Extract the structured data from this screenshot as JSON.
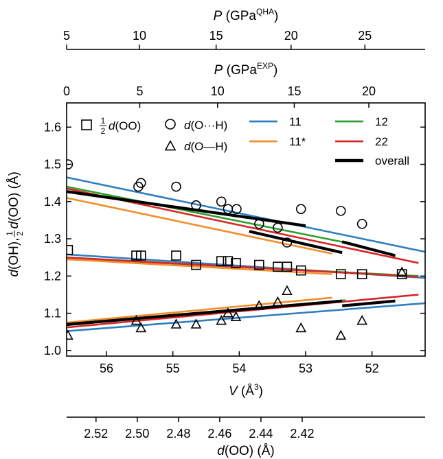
{
  "chart_data": {
    "type": "scatter",
    "xlabel": "V (Å3)",
    "xlabel_parts": {
      "symbol": "V",
      "unit": "(Å",
      "sup": "3",
      "close": ")"
    },
    "ylabel": "d(OH), 1/2 d(OO) (Å)",
    "ylabel_parts": {
      "a": "d",
      "b": "(OH), ",
      "num": "1",
      "den": "2",
      "c": "d",
      "d": "(OO) (Å)"
    },
    "xlim": [
      56.6,
      51.2
    ],
    "ylim": [
      0.985,
      1.665
    ],
    "x_ticks": [
      {
        "value": 56,
        "label": "56"
      },
      {
        "value": 55,
        "label": "55"
      },
      {
        "value": 54,
        "label": "54"
      },
      {
        "value": 53,
        "label": "53"
      },
      {
        "value": 52,
        "label": "52"
      }
    ],
    "y_ticks": [
      {
        "value": 1.0,
        "label": "1.0"
      },
      {
        "value": 1.1,
        "label": "1.1"
      },
      {
        "value": 1.2,
        "label": "1.2"
      },
      {
        "value": 1.3,
        "label": "1.3"
      },
      {
        "value": 1.4,
        "label": "1.4"
      },
      {
        "value": 1.5,
        "label": "1.5"
      },
      {
        "value": 1.6,
        "label": "1.6"
      }
    ],
    "top_axis_qha": {
      "title_symbol": "P",
      "title_unit": "(GPa",
      "title_sup": "QHA",
      "title_close": ")",
      "ticks": [
        {
          "pos": 0.0,
          "label": "5"
        },
        {
          "pos": 0.203,
          "label": "10"
        },
        {
          "pos": 0.417,
          "label": "15"
        },
        {
          "pos": 0.626,
          "label": "20"
        },
        {
          "pos": 0.832,
          "label": "25"
        }
      ]
    },
    "top_axis_exp": {
      "title_symbol": "P",
      "title_unit": "(GPa",
      "title_sup": "EXP",
      "title_close": ")",
      "ticks": [
        {
          "pos": 0.0,
          "label": "0"
        },
        {
          "pos": 0.204,
          "label": "5"
        },
        {
          "pos": 0.421,
          "label": "10"
        },
        {
          "pos": 0.635,
          "label": "15"
        },
        {
          "pos": 0.843,
          "label": "20"
        }
      ]
    },
    "bottom_axis_doo": {
      "title": "d(OO) (Å)",
      "title_symbol": "d",
      "title_rest": "(OO) (Å)",
      "ticks": [
        {
          "pos": 0.082,
          "label": "2.52"
        },
        {
          "pos": 0.197,
          "label": "2.50"
        },
        {
          "pos": 0.312,
          "label": "2.48"
        },
        {
          "pos": 0.427,
          "label": "2.46"
        },
        {
          "pos": 0.542,
          "label": "2.44"
        },
        {
          "pos": 0.657,
          "label": "2.42"
        }
      ]
    },
    "markers": [
      {
        "name": "d(O···H)",
        "symbol": "circle",
        "points": [
          [
            56.58,
            1.5
          ],
          [
            55.52,
            1.44
          ],
          [
            55.48,
            1.45
          ],
          [
            54.95,
            1.44
          ],
          [
            54.65,
            1.39
          ],
          [
            54.27,
            1.4
          ],
          [
            54.17,
            1.38
          ],
          [
            54.04,
            1.38
          ],
          [
            53.7,
            1.34
          ],
          [
            53.42,
            1.33
          ],
          [
            53.28,
            1.29
          ],
          [
            53.07,
            1.38
          ],
          [
            52.47,
            1.375
          ],
          [
            52.15,
            1.34
          ]
        ]
      },
      {
        "name": "1/2d(OO)",
        "symbol": "square",
        "points": [
          [
            56.58,
            1.27
          ],
          [
            55.55,
            1.255
          ],
          [
            55.48,
            1.255
          ],
          [
            54.95,
            1.255
          ],
          [
            54.65,
            1.23
          ],
          [
            54.27,
            1.24
          ],
          [
            54.17,
            1.24
          ],
          [
            54.05,
            1.235
          ],
          [
            53.7,
            1.23
          ],
          [
            53.42,
            1.225
          ],
          [
            53.28,
            1.225
          ],
          [
            53.07,
            1.215
          ],
          [
            52.47,
            1.205
          ],
          [
            52.15,
            1.205
          ],
          [
            51.55,
            1.205
          ]
        ]
      },
      {
        "name": "d(O—H)",
        "symbol": "triangle",
        "points": [
          [
            56.58,
            1.04
          ],
          [
            55.55,
            1.08
          ],
          [
            55.48,
            1.06
          ],
          [
            54.95,
            1.07
          ],
          [
            54.65,
            1.07
          ],
          [
            54.27,
            1.08
          ],
          [
            54.17,
            1.1
          ],
          [
            54.05,
            1.09
          ],
          [
            53.7,
            1.12
          ],
          [
            53.42,
            1.13
          ],
          [
            53.28,
            1.16
          ],
          [
            53.07,
            1.06
          ],
          [
            52.47,
            1.04
          ],
          [
            52.15,
            1.08
          ],
          [
            51.55,
            1.21
          ]
        ]
      }
    ],
    "series": [
      {
        "name": "11",
        "color": "#2f7fbf",
        "width": 2.6,
        "segments": [
          [
            [
              56.6,
              1.465
            ],
            [
              51.2,
              1.265
            ]
          ],
          [
            [
              56.6,
              1.258
            ],
            [
              51.2,
              1.195
            ]
          ],
          [
            [
              56.6,
              1.052
            ],
            [
              51.2,
              1.127
            ]
          ]
        ]
      },
      {
        "name": "12",
        "color": "#2ca02c",
        "width": 2.6,
        "segments": [
          [
            [
              56.6,
              1.44
            ],
            [
              52.4,
              1.29
            ]
          ],
          [
            [
              56.6,
              1.248
            ],
            [
              51.3,
              1.2
            ]
          ],
          [
            [
              56.6,
              1.068
            ],
            [
              52.4,
              1.135
            ]
          ]
        ]
      },
      {
        "name": "11*",
        "color": "#f28e2b",
        "width": 2.6,
        "segments": [
          [
            [
              56.6,
              1.41
            ],
            [
              52.6,
              1.26
            ]
          ],
          [
            [
              56.6,
              1.245
            ],
            [
              52.6,
              1.205
            ]
          ],
          [
            [
              56.6,
              1.075
            ],
            [
              52.6,
              1.142
            ]
          ]
        ]
      },
      {
        "name": "22",
        "color": "#d62728",
        "width": 2.6,
        "segments": [
          [
            [
              56.6,
              1.435
            ],
            [
              51.3,
              1.235
            ]
          ],
          [
            [
              56.6,
              1.25
            ],
            [
              51.3,
              1.198
            ]
          ],
          [
            [
              56.6,
              1.062
            ],
            [
              51.3,
              1.15
            ]
          ]
        ]
      },
      {
        "name": "overall",
        "color": "#000000",
        "width": 4.2,
        "segments": [
          [
            [
              56.6,
              1.427
            ],
            [
              53.0,
              1.335
            ]
          ],
          [
            [
              53.85,
              1.32
            ],
            [
              52.45,
              1.263
            ]
          ],
          [
            [
              52.45,
              1.292
            ],
            [
              51.65,
              1.255
            ]
          ],
          [
            [
              56.6,
              1.07
            ],
            [
              52.45,
              1.133
            ]
          ],
          [
            [
              52.45,
              1.12
            ],
            [
              51.65,
              1.133
            ]
          ]
        ]
      }
    ],
    "legend_markers": [
      {
        "symbol": "square",
        "num": "1",
        "den": "2",
        "text_a": "d",
        "text_b": "(OO)"
      },
      {
        "symbol": "circle",
        "text_a": "d",
        "text_b": "(O···H)"
      },
      {
        "symbol": "triangle",
        "text_a": "d",
        "text_b": "(O—H)"
      }
    ],
    "legend_lines": [
      {
        "label": "11",
        "color": "#2f7fbf"
      },
      {
        "label": "11*",
        "color": "#f28e2b"
      },
      {
        "label": "12",
        "color": "#2ca02c"
      },
      {
        "label": "22",
        "color": "#d62728"
      },
      {
        "label": "overall",
        "color": "#000000"
      }
    ]
  }
}
